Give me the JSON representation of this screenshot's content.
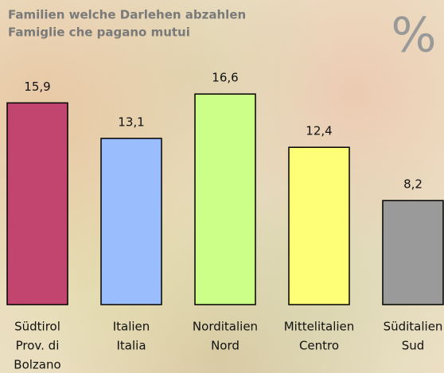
{
  "chart_data": {
    "type": "bar",
    "title": [
      "Familien welche Darlehen abzahlen",
      "Famiglie che pagano mutui"
    ],
    "unit_symbol": "%",
    "categories": [
      [
        "Südtirol",
        "Prov. di",
        "Bolzano"
      ],
      [
        "Italien",
        "Italia"
      ],
      [
        "Norditalien",
        "Nord"
      ],
      [
        "Mittelitalien",
        "Centro"
      ],
      [
        "Süditalien",
        "Sud"
      ]
    ],
    "values": [
      15.9,
      13.1,
      16.6,
      12.4,
      8.2
    ],
    "value_labels": [
      "15,9",
      "13,1",
      "16,6",
      "12,4",
      "8,2"
    ],
    "colors": [
      "#c2456f",
      "#9abdfd",
      "#ccff88",
      "#ffff77",
      "#9a9a9a"
    ]
  }
}
